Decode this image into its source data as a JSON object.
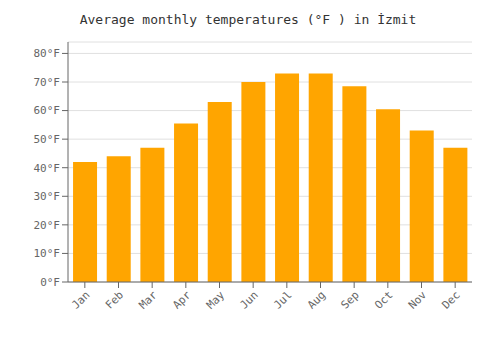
{
  "chart_data": {
    "type": "bar",
    "title": "Average monthly temperatures (°F ) in İzmit",
    "categories": [
      "Jan",
      "Feb",
      "Mar",
      "Apr",
      "May",
      "Jun",
      "Jul",
      "Aug",
      "Sep",
      "Oct",
      "Nov",
      "Dec"
    ],
    "values": [
      42,
      44,
      47,
      55.5,
      63,
      70,
      73,
      73,
      68.5,
      60.5,
      53,
      47
    ],
    "color": "#FFA500",
    "ylim": [
      0,
      84
    ],
    "yticks": [
      {
        "value": 0,
        "label": "0°F"
      },
      {
        "value": 10,
        "label": "10°F"
      },
      {
        "value": 20,
        "label": "20°F"
      },
      {
        "value": 30,
        "label": "30°F"
      },
      {
        "value": 40,
        "label": "40°F"
      },
      {
        "value": 50,
        "label": "50°F"
      },
      {
        "value": 60,
        "label": "60°F"
      },
      {
        "value": 70,
        "label": "70°F"
      },
      {
        "value": 80,
        "label": "80°F"
      }
    ],
    "grid": true
  }
}
